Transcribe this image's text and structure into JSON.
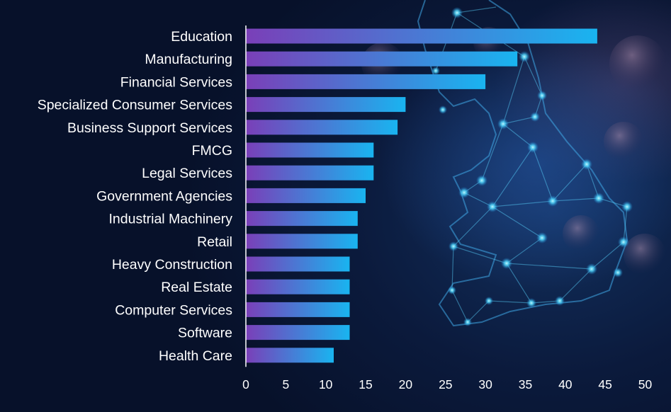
{
  "chart_data": {
    "type": "bar",
    "orientation": "horizontal",
    "title": "",
    "xlabel": "",
    "ylabel": "",
    "categories": [
      "Education",
      "Manufacturing",
      "Financial Services",
      "Specialized Consumer Services",
      "Business Support Services",
      "FMCG",
      "Legal Services",
      "Government Agencies",
      "Industrial Machinery",
      "Retail",
      "Heavy Construction",
      "Real Estate",
      "Computer Services",
      "Software",
      "Health Care"
    ],
    "values": [
      44,
      34,
      30,
      20,
      19,
      16,
      16,
      15,
      14,
      14,
      13,
      13,
      13,
      13,
      11
    ],
    "xlim": [
      0,
      50
    ],
    "xticks": [
      "0",
      "5",
      "10",
      "15",
      "20",
      "25",
      "30",
      "35",
      "40",
      "45",
      "50"
    ],
    "grid": false,
    "legend": "none",
    "colors": {
      "bar_gradient_start": "#7a3fb8",
      "bar_gradient_end": "#19b4f0",
      "text": "#ffffff",
      "axis": "#ffffff"
    }
  },
  "background": {
    "image_description_icon": "network-map-background"
  }
}
